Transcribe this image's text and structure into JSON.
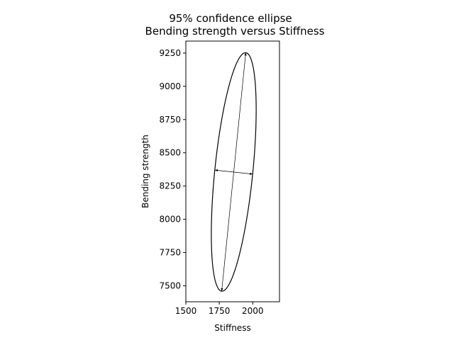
{
  "chart_data": {
    "type": "ellipse",
    "title": "95% confidence ellipse",
    "subtitle": "Bending strength versus Stiffness",
    "xlabel": "Stiffness",
    "ylabel": "Bending strength",
    "xlim": [
      1500,
      2200
    ],
    "ylim": [
      7380,
      9340
    ],
    "xticks": [
      1500,
      1750,
      2000
    ],
    "yticks": [
      7500,
      7750,
      8000,
      8250,
      8500,
      8750,
      9000,
      9250
    ],
    "grid": false,
    "ellipse": {
      "center": [
        1858,
        8356
      ],
      "major_axis_endpoints": [
        [
          1768,
          7460
        ],
        [
          1948,
          9253
        ]
      ],
      "minor_axis_endpoints": [
        [
          1717,
          8370
        ],
        [
          2000,
          8340
        ]
      ]
    },
    "colors": {
      "line": "#000000",
      "background": "#ffffff"
    }
  }
}
